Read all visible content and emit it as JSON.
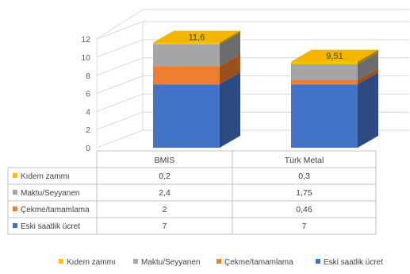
{
  "chart_data": {
    "type": "bar",
    "stacked": true,
    "three_d": true,
    "categories": [
      "BMİS",
      "Türk Metal"
    ],
    "series": [
      {
        "name": "Eski saatlik ücret",
        "values": [
          7,
          7
        ],
        "color": "#4472C4"
      },
      {
        "name": "Çekme/tamamlama",
        "values": [
          2,
          0.46
        ],
        "color": "#ED7D31"
      },
      {
        "name": "Maktu/Seyyanen",
        "values": [
          2.4,
          1.75
        ],
        "color": "#A5A5A5"
      },
      {
        "name": "Kıdem zammı",
        "values": [
          0.2,
          0.3
        ],
        "color": "#FFC000"
      }
    ],
    "table_values": [
      {
        "name": "Kıdem zammı",
        "cells": [
          "0,2",
          "0,3"
        ]
      },
      {
        "name": "Maktu/Seyyanen",
        "cells": [
          "2,4",
          "1,75"
        ]
      },
      {
        "name": "Çekme/tamamlama",
        "cells": [
          "2",
          "0,46"
        ]
      },
      {
        "name": "Eski saatlik ücret",
        "cells": [
          "7",
          "7"
        ]
      }
    ],
    "totals": [
      "11,6",
      "9,51"
    ],
    "ylim": [
      0,
      12
    ],
    "yticks": [
      "0",
      "2",
      "4",
      "6",
      "8",
      "10",
      "12"
    ],
    "grid": true,
    "legend": "bottom",
    "data_table": true,
    "title": "",
    "xlabel": "",
    "ylabel": ""
  }
}
